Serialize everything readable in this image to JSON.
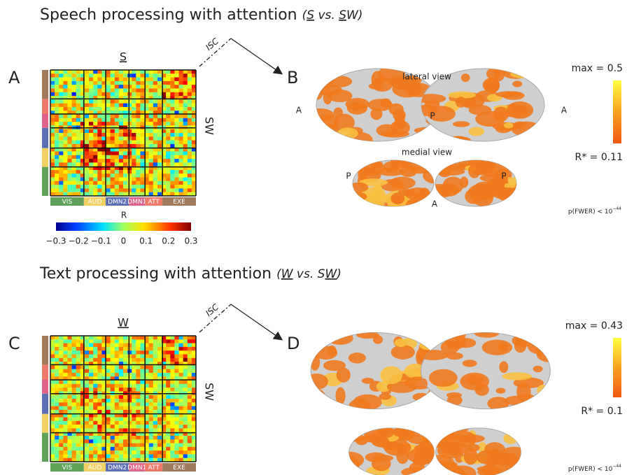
{
  "figure": {
    "top": {
      "title": "Speech processing with attention",
      "title_parts": [
        "(",
        "S",
        " vs. ",
        "S",
        "W)"
      ],
      "matrix_letter": "A",
      "matrix_top": "S",
      "matrix_side": "SW",
      "isc": "ISC",
      "networks": [
        "VIS",
        "AUD",
        "DMN2",
        "DMN1",
        "ATT",
        "EXE"
      ],
      "r_label": "R",
      "r_ticks": [
        "−0.3",
        "−0.2",
        "−0.1",
        "0",
        "0.1",
        "0.2",
        "0.3"
      ],
      "brain_letter": "B",
      "lateral": "lateral view",
      "medial": "medial view",
      "orient": [
        "A",
        "P",
        "A",
        "P",
        "P",
        "A"
      ],
      "max": "max = 0.5",
      "min": "R* = 0.11",
      "p": "p(FWER) < 10",
      "p_exp": "−44"
    },
    "bottom": {
      "title": "Text processing with attention",
      "title_parts": [
        "(",
        "W",
        " vs. S",
        "W",
        ")"
      ],
      "matrix_letter": "C",
      "matrix_top": "W",
      "matrix_side": "SW",
      "isc": "ISC",
      "networks": [
        "VIS",
        "AUD",
        "DMN2",
        "DMN1",
        "ATT",
        "EXE"
      ],
      "brain_letter": "D",
      "max": "max = 0.43",
      "min": "R* = 0.1",
      "p": "p(FWER) < 10",
      "p_exp": "−44"
    }
  }
}
